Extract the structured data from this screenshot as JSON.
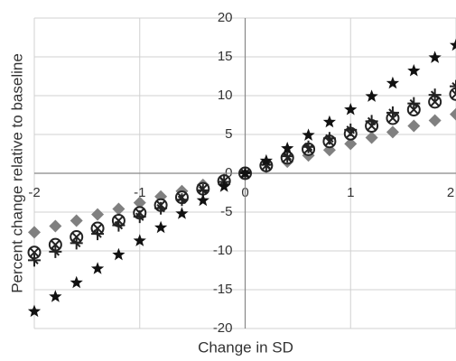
{
  "chart_data": {
    "type": "scatter",
    "x_label": "Change in SD",
    "y_label": "Percent change relative to baseline",
    "x": [
      -2,
      -1.8,
      -1.6,
      -1.4,
      -1.2,
      -1,
      -0.8,
      -0.6,
      -0.4,
      -0.2,
      0,
      0.2,
      0.4,
      0.6,
      0.8,
      1,
      1.2,
      1.4,
      1.6,
      1.8,
      2
    ],
    "series": [
      {
        "marker": "diamond",
        "color": "#808080",
        "values": [
          -7.6,
          -6.8,
          -6.1,
          -5.3,
          -4.6,
          -3.8,
          -3,
          -2.3,
          -1.5,
          -0.8,
          0,
          0.8,
          1.5,
          2.3,
          3,
          3.8,
          4.6,
          5.3,
          6.1,
          6.8,
          7.6
        ]
      },
      {
        "marker": "circle-cross",
        "color": "#222222",
        "values": [
          -10.2,
          -9.2,
          -8.2,
          -7.1,
          -6.1,
          -5.1,
          -4.1,
          -3.1,
          -2,
          -1,
          0,
          1,
          2,
          3.1,
          4.1,
          5.1,
          6.1,
          7.1,
          8.2,
          9.2,
          10.2
        ]
      },
      {
        "marker": "plus",
        "color": "#222222",
        "values": [
          -11.2,
          -10.1,
          -9,
          -7.8,
          -6.7,
          -5.6,
          -4.5,
          -3.4,
          -2.2,
          -1.1,
          0,
          1.1,
          2.2,
          3.4,
          4.5,
          5.6,
          6.7,
          7.8,
          9,
          10.1,
          11.2
        ]
      },
      {
        "marker": "star",
        "color": "#111111",
        "values": [
          -17.8,
          -15.9,
          -14.1,
          -12.3,
          -10.5,
          -8.7,
          -7,
          -5.2,
          -3.5,
          -1.7,
          0,
          1.6,
          3.2,
          4.9,
          6.6,
          8.2,
          9.9,
          11.6,
          13.2,
          14.9,
          16.5
        ]
      }
    ],
    "xlim": [
      -2,
      2
    ],
    "xticks": [
      -2,
      -1,
      0,
      1,
      2
    ],
    "ylim": [
      -20,
      20
    ],
    "yticks": [
      -20,
      -15,
      -10,
      -5,
      0,
      5,
      10,
      15,
      20
    ],
    "grid": true
  }
}
